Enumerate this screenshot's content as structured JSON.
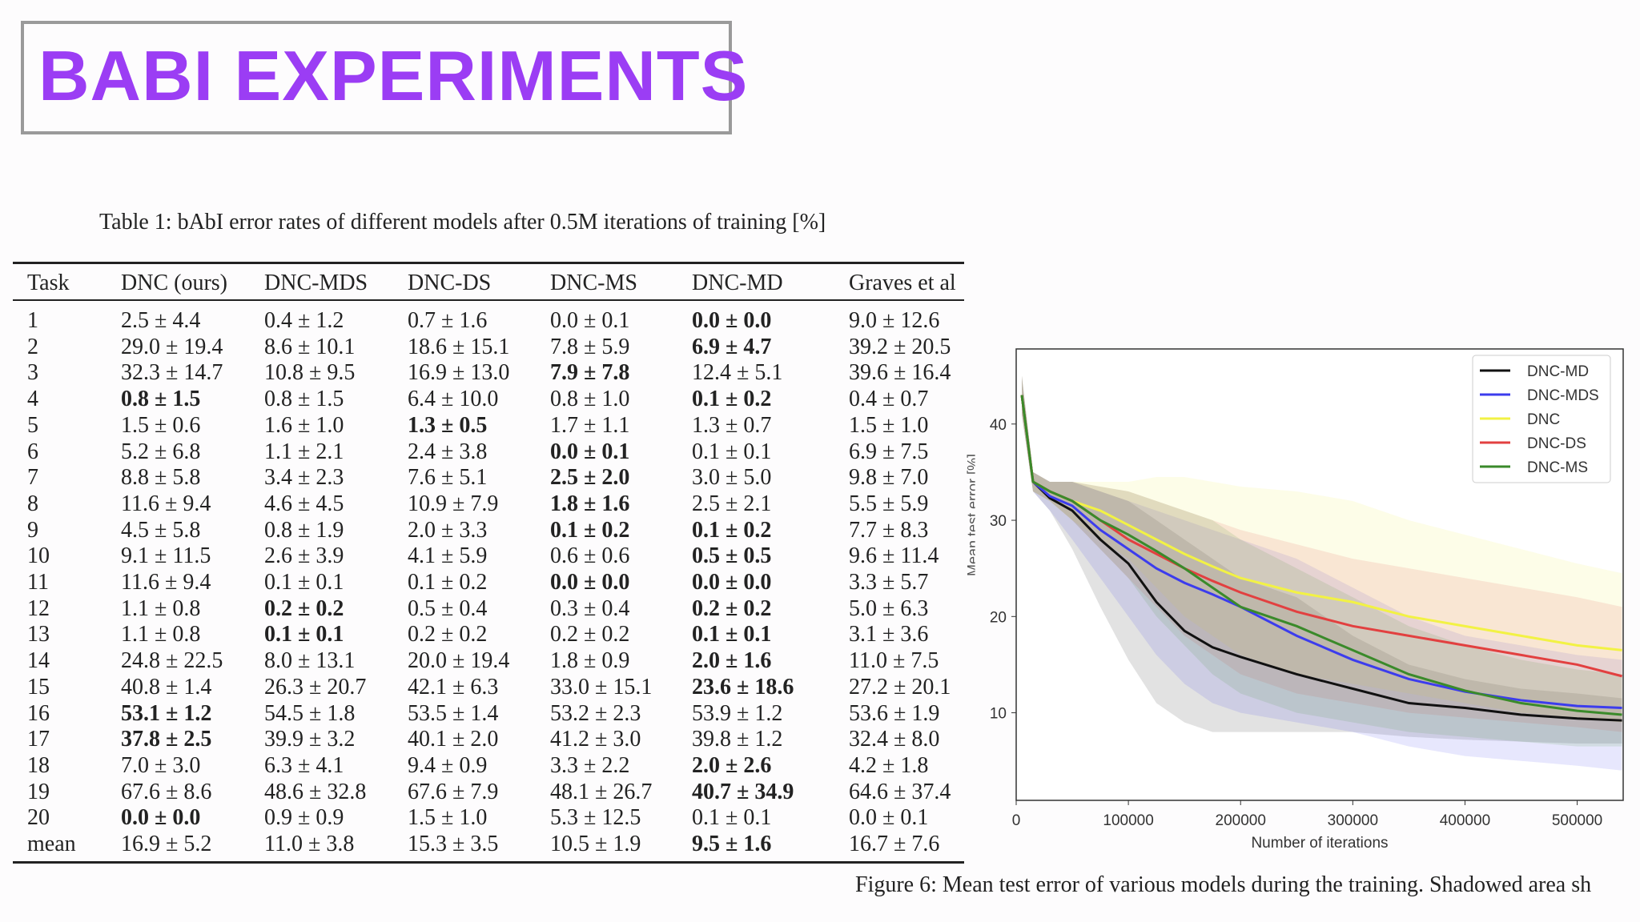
{
  "slide_title": "BABI EXPERIMENTS",
  "table": {
    "caption": "Table 1: bAbI error rates of different models after 0.5M iterations of training [%]",
    "headers": [
      "Task",
      "DNC (ours)",
      "DNC-MDS",
      "DNC-DS",
      "DNC-MS",
      "DNC-MD",
      "Graves et al"
    ],
    "rows": [
      {
        "cells": [
          "1",
          "2.5 ± 4.4",
          "0.4 ± 1.2",
          "0.7 ± 1.6",
          "0.0 ± 0.1",
          "0.0 ± 0.0",
          "9.0 ± 12.6"
        ],
        "bold": [
          5
        ]
      },
      {
        "cells": [
          "2",
          "29.0 ± 19.4",
          "8.6 ± 10.1",
          "18.6 ± 15.1",
          "7.8 ± 5.9",
          "6.9 ± 4.7",
          "39.2 ± 20.5"
        ],
        "bold": [
          5
        ]
      },
      {
        "cells": [
          "3",
          "32.3 ± 14.7",
          "10.8 ± 9.5",
          "16.9 ± 13.0",
          "7.9 ± 7.8",
          "12.4 ± 5.1",
          "39.6 ± 16.4"
        ],
        "bold": [
          4
        ]
      },
      {
        "cells": [
          "4",
          "0.8 ± 1.5",
          "0.8 ± 1.5",
          "6.4 ± 10.0",
          "0.8 ± 1.0",
          "0.1 ± 0.2",
          "0.4 ± 0.7"
        ],
        "bold": [
          1,
          5
        ]
      },
      {
        "cells": [
          "5",
          "1.5 ± 0.6",
          "1.6 ± 1.0",
          "1.3 ± 0.5",
          "1.7 ± 1.1",
          "1.3 ± 0.7",
          "1.5 ± 1.0"
        ],
        "bold": [
          3
        ]
      },
      {
        "cells": [
          "6",
          "5.2 ± 6.8",
          "1.1 ± 2.1",
          "2.4 ± 3.8",
          "0.0 ± 0.1",
          "0.1 ± 0.1",
          "6.9 ± 7.5"
        ],
        "bold": [
          4
        ]
      },
      {
        "cells": [
          "7",
          "8.8 ± 5.8",
          "3.4 ± 2.3",
          "7.6 ± 5.1",
          "2.5 ± 2.0",
          "3.0 ± 5.0",
          "9.8 ± 7.0"
        ],
        "bold": [
          4
        ]
      },
      {
        "cells": [
          "8",
          "11.6 ± 9.4",
          "4.6 ± 4.5",
          "10.9 ± 7.9",
          "1.8 ± 1.6",
          "2.5 ± 2.1",
          "5.5 ± 5.9"
        ],
        "bold": [
          4
        ]
      },
      {
        "cells": [
          "9",
          "4.5 ± 5.8",
          "0.8 ± 1.9",
          "2.0 ± 3.3",
          "0.1 ± 0.2",
          "0.1 ± 0.2",
          "7.7 ± 8.3"
        ],
        "bold": [
          4,
          5
        ]
      },
      {
        "cells": [
          "10",
          "9.1 ± 11.5",
          "2.6 ± 3.9",
          "4.1 ± 5.9",
          "0.6 ± 0.6",
          "0.5 ± 0.5",
          "9.6 ± 11.4"
        ],
        "bold": [
          5
        ]
      },
      {
        "cells": [
          "11",
          "11.6 ± 9.4",
          "0.1 ± 0.1",
          "0.1 ± 0.2",
          "0.0 ± 0.0",
          "0.0 ± 0.0",
          "3.3 ± 5.7"
        ],
        "bold": [
          4,
          5
        ]
      },
      {
        "cells": [
          "12",
          "1.1 ± 0.8",
          "0.2 ± 0.2",
          "0.5 ± 0.4",
          "0.3 ± 0.4",
          "0.2 ± 0.2",
          "5.0 ± 6.3"
        ],
        "bold": [
          2,
          5
        ]
      },
      {
        "cells": [
          "13",
          "1.1 ± 0.8",
          "0.1 ± 0.1",
          "0.2 ± 0.2",
          "0.2 ± 0.2",
          "0.1 ± 0.1",
          "3.1 ± 3.6"
        ],
        "bold": [
          2,
          5
        ]
      },
      {
        "cells": [
          "14",
          "24.8 ± 22.5",
          "8.0 ± 13.1",
          "20.0 ± 19.4",
          "1.8 ± 0.9",
          "2.0 ± 1.6",
          "11.0 ± 7.5"
        ],
        "bold": [
          5
        ]
      },
      {
        "cells": [
          "15",
          "40.8 ± 1.4",
          "26.3 ± 20.7",
          "42.1 ± 6.3",
          "33.0 ± 15.1",
          "23.6 ± 18.6",
          "27.2 ± 20.1"
        ],
        "bold": [
          5
        ]
      },
      {
        "cells": [
          "16",
          "53.1 ± 1.2",
          "54.5 ± 1.8",
          "53.5 ± 1.4",
          "53.2 ± 2.3",
          "53.9 ± 1.2",
          "53.6 ± 1.9"
        ],
        "bold": [
          1
        ]
      },
      {
        "cells": [
          "17",
          "37.8 ± 2.5",
          "39.9 ± 3.2",
          "40.1 ± 2.0",
          "41.2 ± 3.0",
          "39.8 ± 1.2",
          "32.4 ± 8.0"
        ],
        "bold": [
          1
        ]
      },
      {
        "cells": [
          "18",
          "7.0 ± 3.0",
          "6.3 ± 4.1",
          "9.4 ± 0.9",
          "3.3 ± 2.2",
          "2.0 ± 2.6",
          "4.2 ± 1.8"
        ],
        "bold": [
          5
        ]
      },
      {
        "cells": [
          "19",
          "67.6 ± 8.6",
          "48.6 ± 32.8",
          "67.6 ± 7.9",
          "48.1 ± 26.7",
          "40.7 ± 34.9",
          "64.6 ± 37.4"
        ],
        "bold": [
          5
        ]
      },
      {
        "cells": [
          "20",
          "0.0 ± 0.0",
          "0.9 ± 0.9",
          "1.5 ± 1.0",
          "5.3 ± 12.5",
          "0.1 ± 0.1",
          "0.0 ± 0.1"
        ],
        "bold": [
          1
        ]
      },
      {
        "cells": [
          "mean",
          "16.9 ± 5.2",
          "11.0 ± 3.8",
          "15.3 ± 3.5",
          "10.5 ± 1.9",
          "9.5 ± 1.6",
          "16.7 ± 7.6"
        ],
        "bold": [
          5
        ]
      }
    ]
  },
  "figure_caption": "Figure 6: Mean test error of various models during the training. Shadowed area sh",
  "chart_data": {
    "type": "line",
    "xlabel": "Number of iterations",
    "ylabel": "Mean test error [%]",
    "xlim": [
      0,
      541000
    ],
    "ylim": [
      0.9,
      47.8
    ],
    "xticks": [
      0,
      100000,
      200000,
      300000,
      400000,
      500000
    ],
    "yticks": [
      10,
      20,
      30,
      40
    ],
    "legend_position": "top-right",
    "x": [
      5000,
      15000,
      30000,
      50000,
      75000,
      100000,
      125000,
      150000,
      175000,
      200000,
      250000,
      300000,
      350000,
      400000,
      450000,
      500000,
      540000
    ],
    "series": [
      {
        "name": "DNC-MD",
        "color": "#111111",
        "values": [
          43,
          34,
          32.3,
          31,
          28,
          25.5,
          21.5,
          18.5,
          16.8,
          15.8,
          14,
          12.5,
          11,
          10.5,
          9.8,
          9.4,
          9.2
        ],
        "lower": [
          41,
          33,
          31,
          27,
          21,
          15.5,
          11,
          9,
          8,
          8,
          8,
          8,
          7.5,
          7.2,
          7,
          6.8,
          6.8
        ],
        "upper": [
          45,
          35,
          34,
          34,
          33,
          32,
          30,
          28,
          26,
          24,
          22,
          18,
          15,
          13.5,
          12.5,
          12,
          11.5
        ]
      },
      {
        "name": "DNC-MDS",
        "color": "#3c3ced",
        "values": [
          43,
          34,
          32.5,
          31.5,
          29,
          27,
          25,
          23.5,
          22.3,
          21,
          18,
          15.5,
          13.5,
          12.2,
          11.3,
          10.7,
          10.5
        ],
        "lower": [
          41,
          33,
          31,
          28,
          24,
          20,
          16,
          13,
          11,
          10,
          9,
          8,
          6.5,
          5.5,
          5,
          4.5,
          4
        ],
        "upper": [
          45,
          35,
          34,
          34,
          33,
          32,
          31,
          30,
          29,
          28,
          26,
          23,
          20,
          18,
          17,
          16,
          15.5
        ]
      },
      {
        "name": "DNC",
        "color": "#f2f244",
        "values": [
          43,
          34,
          33,
          32,
          31,
          29.5,
          28,
          26.5,
          25.2,
          24,
          22.5,
          21.5,
          20,
          19,
          18,
          17,
          16.5
        ],
        "lower": [
          41,
          33,
          32,
          30,
          28,
          26,
          23,
          20,
          18,
          16,
          14,
          13,
          12,
          11,
          10,
          9.5,
          9
        ],
        "upper": [
          45,
          35,
          34,
          34,
          34,
          34,
          34.5,
          34.5,
          34,
          33.5,
          33,
          32,
          30,
          28.5,
          27,
          25.5,
          24.5
        ]
      },
      {
        "name": "DNC-DS",
        "color": "#e24040",
        "values": [
          43,
          34,
          33,
          32,
          30,
          28,
          26.5,
          25,
          23.7,
          22.5,
          20.5,
          19,
          18,
          17,
          16,
          15,
          13.8
        ],
        "lower": [
          41,
          33,
          32,
          30,
          27,
          24,
          21,
          18,
          16,
          14,
          12,
          11,
          10,
          9.5,
          9,
          8.5,
          8
        ],
        "upper": [
          45,
          35,
          34,
          34,
          33.5,
          33,
          32,
          31,
          30,
          29,
          27.5,
          26,
          25,
          24,
          23,
          22,
          21
        ]
      },
      {
        "name": "DNC-MS",
        "color": "#3a8a2a",
        "values": [
          43,
          34,
          33,
          32,
          30,
          28.5,
          26.8,
          25,
          23,
          21,
          19,
          16.5,
          14,
          12.3,
          11,
          10.2,
          9.8
        ],
        "lower": [
          41,
          33,
          32,
          30,
          27,
          24,
          20,
          17,
          14,
          12,
          10,
          9,
          8,
          7.5,
          7,
          6.5,
          6.5
        ],
        "upper": [
          45,
          35,
          34,
          34,
          33.5,
          33,
          32,
          31,
          30,
          28,
          25,
          22,
          19,
          17,
          15.5,
          14.5,
          14
        ]
      }
    ]
  }
}
